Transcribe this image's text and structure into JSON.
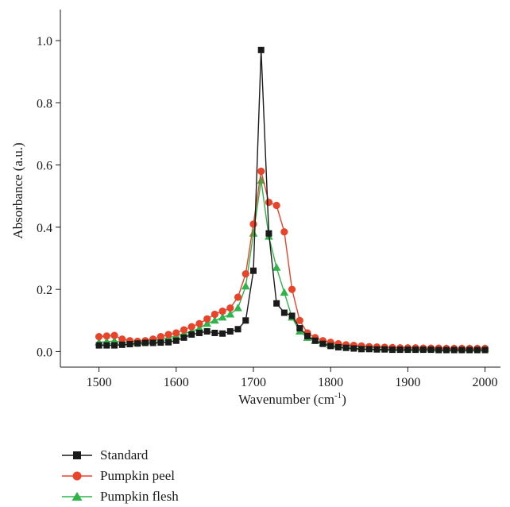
{
  "chart_data": {
    "type": "line",
    "xlabel": "Wavenumber (cm",
    "xlabel_sup": "-1",
    "xlabel_end": ")",
    "ylabel": "Absorbance (a.u.)",
    "xlim": [
      1450,
      2020
    ],
    "ylim": [
      -0.05,
      1.1
    ],
    "x_ticks": [
      1500,
      1600,
      1700,
      1800,
      1900,
      2000
    ],
    "y_ticks": [
      0.0,
      0.2,
      0.4,
      0.6,
      0.8,
      1.0
    ],
    "y_tick_labels": [
      "0.0",
      "0.2",
      "0.4",
      "0.6",
      "0.8",
      "1.0"
    ],
    "legend_position": "bottom-left",
    "series": [
      {
        "name": "Standard",
        "color": "#1a1a1a",
        "marker": "square",
        "x": [
          1500,
          1510,
          1520,
          1530,
          1540,
          1550,
          1560,
          1570,
          1580,
          1590,
          1600,
          1610,
          1620,
          1630,
          1640,
          1650,
          1660,
          1670,
          1680,
          1690,
          1700,
          1710,
          1720,
          1730,
          1740,
          1750,
          1760,
          1770,
          1780,
          1790,
          1800,
          1810,
          1820,
          1830,
          1840,
          1850,
          1860,
          1870,
          1880,
          1890,
          1900,
          1910,
          1920,
          1930,
          1940,
          1950,
          1960,
          1970,
          1980,
          1990,
          2000
        ],
        "values": [
          0.02,
          0.02,
          0.02,
          0.022,
          0.024,
          0.026,
          0.028,
          0.028,
          0.029,
          0.03,
          0.035,
          0.045,
          0.055,
          0.06,
          0.065,
          0.06,
          0.058,
          0.065,
          0.072,
          0.1,
          0.26,
          0.97,
          0.38,
          0.155,
          0.125,
          0.115,
          0.075,
          0.05,
          0.035,
          0.025,
          0.018,
          0.014,
          0.012,
          0.01,
          0.008,
          0.008,
          0.007,
          0.007,
          0.006,
          0.006,
          0.006,
          0.006,
          0.006,
          0.006,
          0.005,
          0.005,
          0.005,
          0.005,
          0.005,
          0.005,
          0.005
        ]
      },
      {
        "name": "Pumpkin peel",
        "color": "#e8442a",
        "marker": "circle",
        "x": [
          1500,
          1510,
          1520,
          1530,
          1540,
          1550,
          1560,
          1570,
          1580,
          1590,
          1600,
          1610,
          1620,
          1630,
          1640,
          1650,
          1660,
          1670,
          1680,
          1690,
          1700,
          1710,
          1720,
          1730,
          1740,
          1750,
          1760,
          1770,
          1780,
          1790,
          1800,
          1810,
          1820,
          1830,
          1840,
          1850,
          1860,
          1870,
          1880,
          1890,
          1900,
          1910,
          1920,
          1930,
          1940,
          1950,
          1960,
          1970,
          1980,
          1990,
          2000
        ],
        "values": [
          0.048,
          0.05,
          0.052,
          0.04,
          0.035,
          0.033,
          0.035,
          0.04,
          0.048,
          0.055,
          0.06,
          0.07,
          0.08,
          0.09,
          0.105,
          0.12,
          0.13,
          0.14,
          0.175,
          0.25,
          0.41,
          0.58,
          0.48,
          0.47,
          0.385,
          0.2,
          0.1,
          0.06,
          0.045,
          0.035,
          0.03,
          0.025,
          0.022,
          0.02,
          0.018,
          0.016,
          0.015,
          0.014,
          0.013,
          0.012,
          0.012,
          0.012,
          0.011,
          0.011,
          0.011,
          0.01,
          0.01,
          0.01,
          0.01,
          0.01,
          0.01
        ]
      },
      {
        "name": "Pumpkin flesh",
        "color": "#2fb34a",
        "marker": "triangle",
        "x": [
          1500,
          1510,
          1520,
          1530,
          1540,
          1550,
          1560,
          1570,
          1580,
          1590,
          1600,
          1610,
          1620,
          1630,
          1640,
          1650,
          1660,
          1670,
          1680,
          1690,
          1700,
          1710,
          1720,
          1730,
          1740,
          1750,
          1760,
          1770,
          1780,
          1790,
          1800,
          1810,
          1820,
          1830,
          1840,
          1850,
          1860,
          1870,
          1880,
          1890,
          1900,
          1910,
          1920,
          1930,
          1940,
          1950,
          1960,
          1970,
          1980,
          1990,
          2000
        ],
        "values": [
          0.03,
          0.032,
          0.034,
          0.03,
          0.03,
          0.03,
          0.032,
          0.035,
          0.04,
          0.045,
          0.05,
          0.058,
          0.065,
          0.075,
          0.09,
          0.1,
          0.11,
          0.12,
          0.14,
          0.21,
          0.38,
          0.55,
          0.37,
          0.27,
          0.19,
          0.11,
          0.065,
          0.045,
          0.035,
          0.028,
          0.022,
          0.02,
          0.018,
          0.016,
          0.015,
          0.014,
          0.013,
          0.012,
          0.012,
          0.011,
          0.011,
          0.011,
          0.01,
          0.01,
          0.01,
          0.01,
          0.01,
          0.01,
          0.01,
          0.01,
          0.01
        ]
      }
    ]
  }
}
